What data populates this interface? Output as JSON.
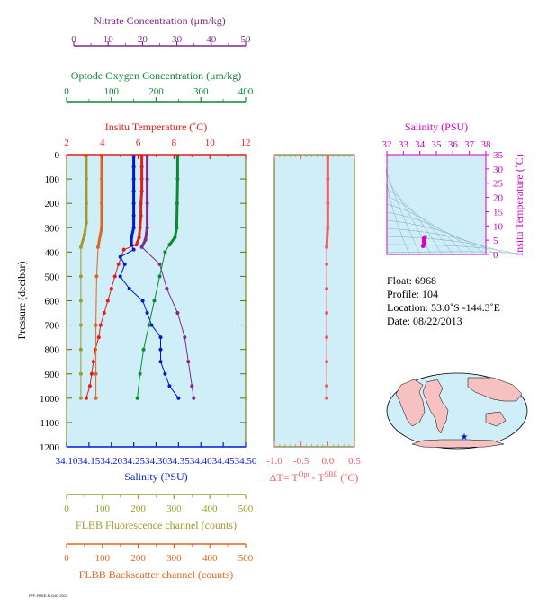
{
  "colors": {
    "nitrate": "#7f2a87",
    "oxygen": "#0d8a33",
    "temperature": "#e31c1c",
    "salinity": "#0019d6",
    "fluorescence": "#9c9c2c",
    "backscatter": "#e0661c",
    "delta": "#f06060",
    "ts_axis": "#d400c8",
    "panel_bg": "#cfeef8",
    "frame": "#6a6a00"
  },
  "nitrate_axis": {
    "label": "Nitrate Concentration (μm/kg)",
    "ticks": [
      "0",
      "10",
      "20",
      "30",
      "40",
      "50"
    ],
    "range": [
      0,
      50
    ]
  },
  "oxygen_axis": {
    "label": "Optode Oxygen Concentration (μm/kg)",
    "ticks": [
      "0",
      "100",
      "200",
      "300",
      "400"
    ],
    "range": [
      0,
      400
    ]
  },
  "temperature_axis": {
    "label": "Insitu Temperature (˚C)",
    "ticks": [
      "2",
      "4",
      "6",
      "8",
      "10",
      "12"
    ],
    "range": [
      2,
      12
    ]
  },
  "pressure_axis": {
    "label": "Pressure (decibar)",
    "ticks": [
      "0",
      "100",
      "200",
      "300",
      "400",
      "500",
      "600",
      "700",
      "800",
      "900",
      "1000",
      "1100",
      "1200"
    ],
    "range": [
      0,
      1200
    ]
  },
  "salinity_axis": {
    "label": "Salinity (PSU)",
    "ticks": [
      "34.10",
      "34.15",
      "34.20",
      "34.25",
      "34.30",
      "34.35",
      "34.40",
      "34.45",
      "34.50"
    ],
    "range": [
      34.1,
      34.5
    ]
  },
  "fluorescence_axis": {
    "label": "FLBB Fluorescence channel (counts)",
    "ticks": [
      "0",
      "100",
      "200",
      "300",
      "400",
      "500"
    ],
    "range": [
      0,
      500
    ]
  },
  "backscatter_axis": {
    "label": "FLBB Backscatter channel (counts)",
    "ticks": [
      "0",
      "100",
      "200",
      "300",
      "400",
      "500"
    ],
    "range": [
      0,
      500
    ]
  },
  "delta_axis": {
    "label_prefix": "ΔT= T",
    "label_sup1": "Opt",
    "label_mid": " - T",
    "label_sup2": "SBE",
    "label_suffix": " (˚C)",
    "ticks": [
      "-1.0",
      "-0.5",
      "0.0",
      "0.5"
    ],
    "range": [
      -1.0,
      0.5
    ]
  },
  "ts_plot": {
    "x_label": "Salinity (PSU)",
    "x_ticks": [
      "32",
      "33",
      "34",
      "35",
      "36",
      "37",
      "38"
    ],
    "x_range": [
      32,
      38
    ],
    "y_label": "Insitu Temperature (˚C)",
    "y_ticks": [
      "0",
      "5",
      "10",
      "15",
      "20",
      "25",
      "30",
      "35"
    ],
    "y_range": [
      0,
      35
    ]
  },
  "info": {
    "float": "Float:  6968",
    "profile": "Profile:  104",
    "location": "Location:  53.0˚S  -144.3˚E",
    "date": "Date:  08/22/2013"
  },
  "footer_text": "FFF-FREE-FLOAT-2013",
  "chart_data": {
    "type": "line",
    "y_variable": "Pressure (decibar)",
    "y_reversed": true,
    "ylim": [
      0,
      1200
    ],
    "series": [
      {
        "name": "Insitu Temperature (˚C)",
        "color": "#e31c1c",
        "pressure": [
          5,
          50,
          100,
          150,
          200,
          250,
          300,
          340,
          370,
          390,
          450,
          500,
          550,
          600,
          650,
          700,
          750,
          800,
          850,
          900,
          950,
          1000
        ],
        "values": [
          6.2,
          6.2,
          6.2,
          6.2,
          6.15,
          6.15,
          6.1,
          6.05,
          5.9,
          5.2,
          4.9,
          4.7,
          4.5,
          4.3,
          4.1,
          3.9,
          3.8,
          3.6,
          3.5,
          3.4,
          3.3,
          3.1
        ]
      },
      {
        "name": "Salinity (PSU)",
        "color": "#0019d6",
        "pressure": [
          5,
          50,
          100,
          150,
          200,
          250,
          300,
          340,
          370,
          390,
          420,
          450,
          500,
          550,
          600,
          650,
          700,
          750,
          800,
          850,
          900,
          950,
          1000
        ],
        "values": [
          34.25,
          34.25,
          34.25,
          34.25,
          34.25,
          34.25,
          34.25,
          34.245,
          34.245,
          34.25,
          34.22,
          34.23,
          34.22,
          34.24,
          34.27,
          34.28,
          34.29,
          34.31,
          34.31,
          34.31,
          34.32,
          34.33,
          34.35
        ]
      },
      {
        "name": "Nitrate Concentration (μm/kg)",
        "color": "#7f2a87",
        "pressure": [
          5,
          100,
          200,
          300,
          350,
          380,
          450,
          550,
          650,
          750,
          850,
          950,
          1000
        ],
        "values": [
          22.5,
          22.5,
          22.5,
          22.5,
          22,
          21,
          26,
          28,
          31,
          33,
          34,
          35,
          35.5
        ]
      },
      {
        "name": "Optode Oxygen Concentration (μm/kg)",
        "color": "#0d8a33",
        "pressure": [
          5,
          100,
          200,
          300,
          340,
          370,
          400,
          500,
          600,
          700,
          800,
          900,
          1000
        ],
        "values": [
          248,
          248,
          247,
          246,
          242,
          230,
          220,
          208,
          196,
          184,
          172,
          164,
          158
        ]
      },
      {
        "name": "FLBB Fluorescence channel (counts)",
        "color": "#9c9c2c",
        "pressure": [
          5,
          100,
          200,
          280,
          330,
          380,
          500,
          600,
          700,
          800,
          900,
          1000
        ],
        "values": [
          55,
          55,
          55,
          55,
          50,
          40,
          40,
          40,
          40,
          40,
          40,
          40
        ]
      },
      {
        "name": "FLBB Backscatter channel (counts)",
        "color": "#e0661c",
        "pressure": [
          5,
          100,
          200,
          300,
          380,
          500,
          700,
          900,
          1000
        ],
        "values": [
          98,
          98,
          98,
          98,
          88,
          84,
          82,
          82,
          82
        ]
      },
      {
        "name": "ΔT",
        "color": "#f06060",
        "pressure": [
          5,
          100,
          200,
          300,
          380,
          450,
          550,
          650,
          750,
          850,
          950,
          1000
        ],
        "values": [
          0.0,
          0.0,
          0.0,
          0.0,
          -0.02,
          -0.02,
          -0.02,
          -0.02,
          -0.02,
          -0.02,
          -0.02,
          -0.02
        ]
      }
    ],
    "ts_points": {
      "salinity": [
        34.2,
        34.25,
        34.3,
        34.25,
        34.28
      ],
      "temperature": [
        3.0,
        4.5,
        6.0,
        5.5,
        4.0
      ]
    }
  }
}
